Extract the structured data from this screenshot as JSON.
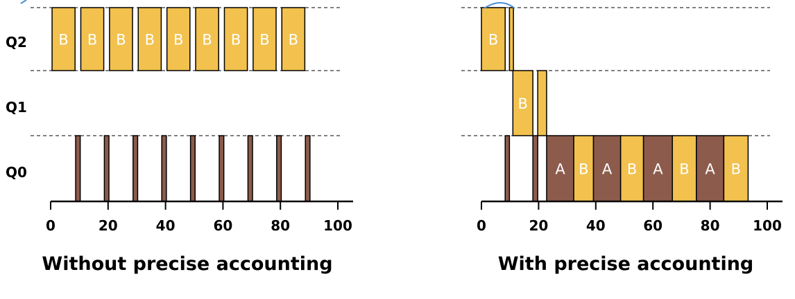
{
  "colors": {
    "B": "#f2c14e",
    "A": "#8c5b4c",
    "outline": "#000000",
    "annotation": "#4a8fd6"
  },
  "queue_labels": [
    "Q2",
    "Q1",
    "Q0"
  ],
  "x_ticks": [
    0,
    20,
    40,
    60,
    80,
    100
  ],
  "x_range": [
    0,
    100
  ],
  "panels": [
    {
      "title": "Without precise accounting",
      "blocks": [
        {
          "q": "Q2",
          "start": 0.5,
          "end": 8.5,
          "label": "B"
        },
        {
          "q": "Q2",
          "start": 10.5,
          "end": 18.5,
          "label": "B"
        },
        {
          "q": "Q2",
          "start": 20.5,
          "end": 28.5,
          "label": "B"
        },
        {
          "q": "Q2",
          "start": 30.5,
          "end": 38.5,
          "label": "B"
        },
        {
          "q": "Q2",
          "start": 40.5,
          "end": 48.5,
          "label": "B"
        },
        {
          "q": "Q2",
          "start": 50.5,
          "end": 58.5,
          "label": "B"
        },
        {
          "q": "Q2",
          "start": 60.5,
          "end": 68.5,
          "label": "B"
        },
        {
          "q": "Q2",
          "start": 70.5,
          "end": 78.5,
          "label": "B"
        },
        {
          "q": "Q2",
          "start": 80.5,
          "end": 88.5,
          "label": "B"
        },
        {
          "q": "Q0",
          "start": 8.7,
          "end": 10.3,
          "label": ""
        },
        {
          "q": "Q0",
          "start": 18.7,
          "end": 20.3,
          "label": ""
        },
        {
          "q": "Q0",
          "start": 28.7,
          "end": 30.3,
          "label": ""
        },
        {
          "q": "Q0",
          "start": 38.7,
          "end": 40.3,
          "label": ""
        },
        {
          "q": "Q0",
          "start": 48.7,
          "end": 50.3,
          "label": ""
        },
        {
          "q": "Q0",
          "start": 58.7,
          "end": 60.3,
          "label": ""
        },
        {
          "q": "Q0",
          "start": 68.7,
          "end": 70.3,
          "label": ""
        },
        {
          "q": "Q0",
          "start": 78.7,
          "end": 80.3,
          "label": ""
        },
        {
          "q": "Q0",
          "start": 88.7,
          "end": 90.3,
          "label": ""
        }
      ]
    },
    {
      "title": "With precise accounting",
      "blocks": [
        {
          "q": "Q2",
          "start": 0.0,
          "end": 8.3,
          "label": "B"
        },
        {
          "q": "Q2",
          "start": 9.8,
          "end": 11.2,
          "label": ""
        },
        {
          "q": "Q1",
          "start": 11.0,
          "end": 18.0,
          "label": "B"
        },
        {
          "q": "Q1",
          "start": 19.7,
          "end": 22.8,
          "label": ""
        },
        {
          "q": "Q0",
          "start": 8.3,
          "end": 9.8,
          "label": ""
        },
        {
          "q": "Q0",
          "start": 18.0,
          "end": 19.7,
          "label": ""
        },
        {
          "q": "Q0",
          "start": 22.8,
          "end": 32.3,
          "label": "A"
        },
        {
          "q": "Q0",
          "start": 32.3,
          "end": 39.2,
          "label": "B"
        },
        {
          "q": "Q0",
          "start": 39.2,
          "end": 48.7,
          "label": "A"
        },
        {
          "q": "Q0",
          "start": 48.7,
          "end": 56.7,
          "label": "B"
        },
        {
          "q": "Q0",
          "start": 56.7,
          "end": 66.8,
          "label": "A"
        },
        {
          "q": "Q0",
          "start": 66.8,
          "end": 75.2,
          "label": "B"
        },
        {
          "q": "Q0",
          "start": 75.2,
          "end": 84.8,
          "label": "A"
        },
        {
          "q": "Q0",
          "start": 84.8,
          "end": 93.3,
          "label": "B"
        }
      ]
    }
  ]
}
